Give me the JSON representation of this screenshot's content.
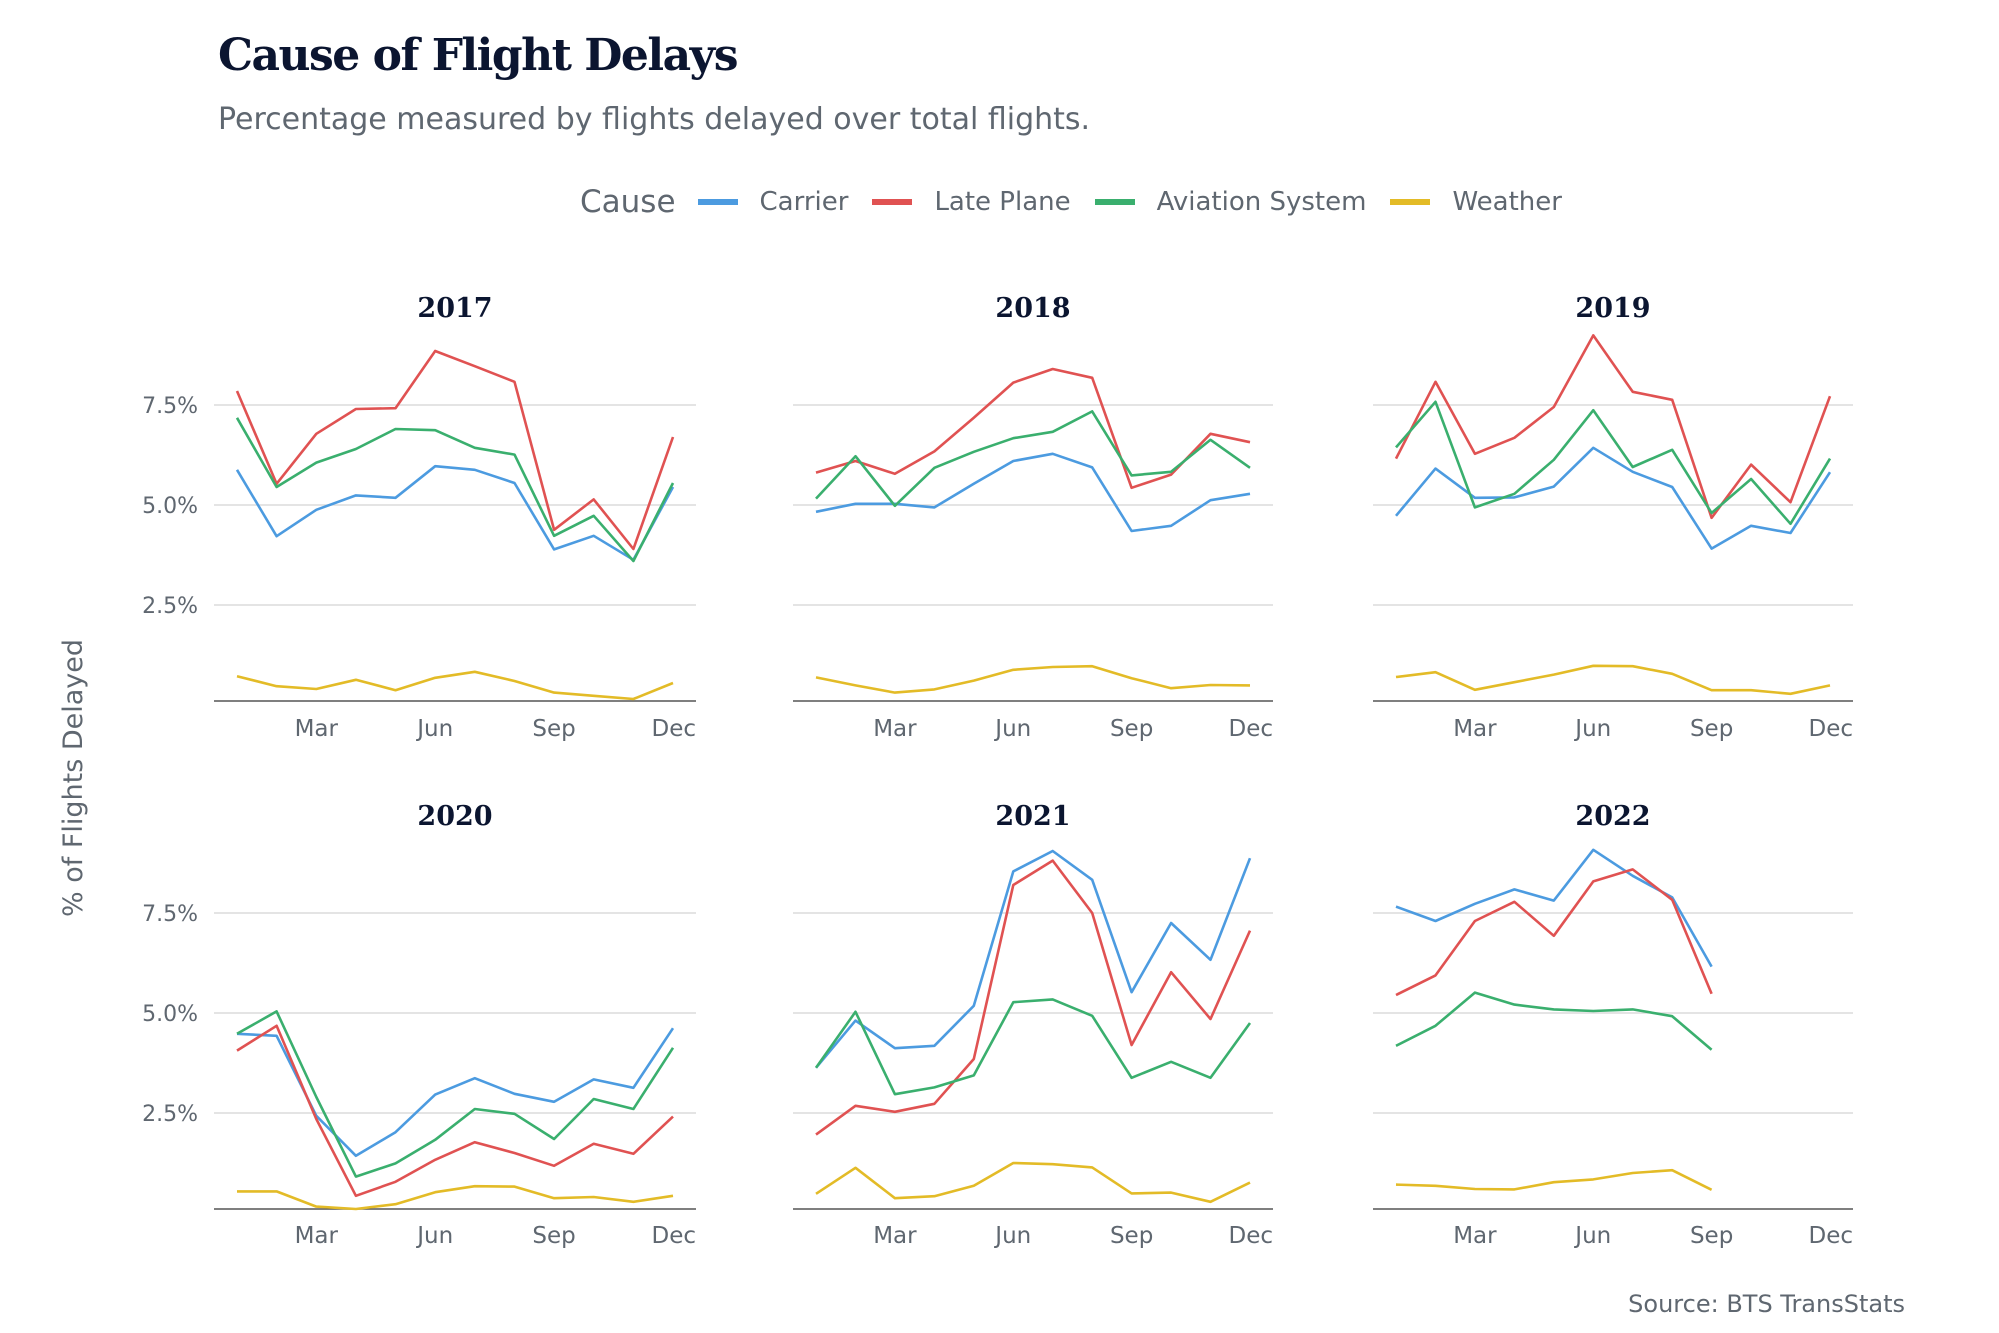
{
  "chart_data": {
    "type": "line",
    "title": "Cause of Flight Delays",
    "subtitle": "Percentage measured by flights delayed over total flights.",
    "ylabel": "% of Flights Delayed",
    "source": "Source: BTS TransStats",
    "legend": {
      "title": "Cause",
      "placement": "top"
    },
    "ylim": [
      0,
      9.5
    ],
    "yticks": [
      2.5,
      5.0,
      7.5
    ],
    "ytick_labels": [
      "2.5%",
      "5.0%",
      "7.5%"
    ],
    "x": [
      "Jan",
      "Feb",
      "Mar",
      "Apr",
      "May",
      "Jun",
      "Jul",
      "Aug",
      "Sep",
      "Oct",
      "Nov",
      "Dec"
    ],
    "xtick_labels": [
      "Mar",
      "Jun",
      "Sep",
      "Dec"
    ],
    "grid": true,
    "series_meta": [
      {
        "key": "carrier",
        "name": "Carrier",
        "color": "#4c9be0"
      },
      {
        "key": "late_plane",
        "name": "Late Plane",
        "color": "#e05252"
      },
      {
        "key": "aviation_system",
        "name": "Aviation System",
        "color": "#3aaf6e"
      },
      {
        "key": "weather",
        "name": "Weather",
        "color": "#e3bb27"
      }
    ],
    "panels": [
      {
        "year": "2017",
        "carrier": [
          5.88,
          4.22,
          4.88,
          5.24,
          5.18,
          5.97,
          5.88,
          5.55,
          3.89,
          4.23,
          3.63,
          5.45
        ],
        "late_plane": [
          7.85,
          5.53,
          6.78,
          7.4,
          7.42,
          8.85,
          8.47,
          8.08,
          4.38,
          5.14,
          3.9,
          6.7
        ],
        "aviation_system": [
          7.18,
          5.45,
          6.06,
          6.4,
          6.9,
          6.87,
          6.43,
          6.26,
          4.23,
          4.73,
          3.6,
          5.55
        ],
        "weather": [
          0.72,
          0.47,
          0.4,
          0.63,
          0.37,
          0.68,
          0.83,
          0.6,
          0.31,
          0.23,
          0.15,
          0.55
        ]
      },
      {
        "year": "2018",
        "carrier": [
          4.83,
          5.03,
          5.03,
          4.94,
          5.53,
          6.1,
          6.28,
          5.94,
          4.35,
          4.48,
          5.12,
          5.28
        ],
        "late_plane": [
          5.81,
          6.1,
          5.78,
          6.34,
          7.18,
          8.06,
          8.4,
          8.18,
          5.43,
          5.76,
          6.78,
          6.57
        ],
        "aviation_system": [
          5.16,
          6.22,
          4.98,
          5.93,
          6.33,
          6.67,
          6.83,
          7.34,
          5.74,
          5.83,
          6.63,
          5.93
        ],
        "weather": [
          0.69,
          0.49,
          0.31,
          0.39,
          0.61,
          0.88,
          0.95,
          0.97,
          0.67,
          0.42,
          0.5,
          0.49
        ]
      },
      {
        "year": "2019",
        "carrier": [
          4.73,
          5.91,
          5.18,
          5.19,
          5.46,
          6.43,
          5.83,
          5.45,
          3.91,
          4.48,
          4.3,
          5.82
        ],
        "late_plane": [
          6.16,
          8.08,
          6.28,
          6.68,
          7.45,
          9.24,
          7.83,
          7.63,
          4.68,
          6.01,
          5.07,
          7.72
        ],
        "aviation_system": [
          6.44,
          7.58,
          4.94,
          5.28,
          6.13,
          7.37,
          5.95,
          6.38,
          4.8,
          5.65,
          4.53,
          6.16
        ],
        "weather": [
          0.7,
          0.82,
          0.38,
          0.57,
          0.76,
          0.98,
          0.97,
          0.78,
          0.37,
          0.37,
          0.28,
          0.49
        ]
      },
      {
        "year": "2020",
        "carrier": [
          4.48,
          4.43,
          2.43,
          1.43,
          2.02,
          2.96,
          3.37,
          2.98,
          2.78,
          3.34,
          3.13,
          4.62
        ],
        "late_plane": [
          4.06,
          4.68,
          2.35,
          0.43,
          0.78,
          1.33,
          1.77,
          1.5,
          1.18,
          1.73,
          1.48,
          2.41
        ],
        "aviation_system": [
          4.48,
          5.04,
          2.9,
          0.91,
          1.24,
          1.83,
          2.6,
          2.48,
          1.85,
          2.85,
          2.6,
          4.13
        ],
        "weather": [
          0.54,
          0.54,
          0.16,
          0.1,
          0.22,
          0.52,
          0.67,
          0.66,
          0.37,
          0.4,
          0.28,
          0.43
        ]
      },
      {
        "year": "2021",
        "carrier": [
          3.63,
          4.81,
          4.12,
          4.18,
          5.18,
          8.54,
          9.05,
          8.33,
          5.52,
          7.25,
          6.33,
          8.87
        ],
        "late_plane": [
          1.96,
          2.68,
          2.53,
          2.73,
          3.85,
          8.2,
          8.81,
          7.5,
          4.2,
          6.02,
          4.85,
          7.06
        ],
        "aviation_system": [
          3.63,
          5.03,
          2.97,
          3.14,
          3.44,
          5.27,
          5.34,
          4.93,
          3.38,
          3.78,
          3.38,
          4.75
        ],
        "weather": [
          0.48,
          1.13,
          0.37,
          0.42,
          0.68,
          1.25,
          1.22,
          1.14,
          0.49,
          0.51,
          0.28,
          0.76
        ]
      },
      {
        "year": "2022",
        "carrier": [
          7.66,
          7.3,
          7.73,
          8.09,
          7.81,
          9.08,
          8.43,
          7.89,
          6.16
        ],
        "late_plane": [
          5.45,
          5.94,
          7.3,
          7.78,
          6.93,
          8.29,
          8.59,
          7.83,
          5.48
        ],
        "aviation_system": [
          4.18,
          4.68,
          5.51,
          5.21,
          5.09,
          5.05,
          5.09,
          4.92,
          4.08
        ],
        "weather": [
          0.71,
          0.68,
          0.6,
          0.59,
          0.77,
          0.84,
          1.0,
          1.07,
          0.58
        ]
      }
    ]
  }
}
